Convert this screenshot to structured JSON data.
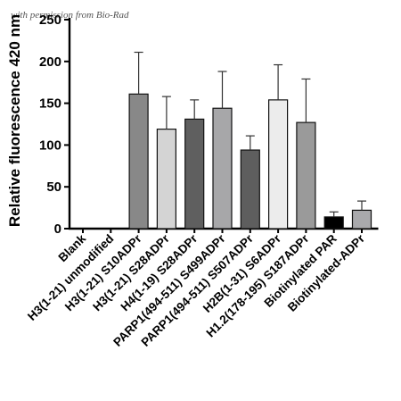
{
  "watermark": "with permission from Bio-Rad",
  "chart_data": {
    "type": "bar",
    "ylabel": "Relative fluorescence 420 nm",
    "ylim": [
      0,
      250
    ],
    "yticks": [
      0,
      50,
      100,
      150,
      200,
      250
    ],
    "grid": false,
    "categories": [
      "Blank",
      "H3(1-21) unmodified",
      "H3(1-21) S10ADPr",
      "H3(1-21) S28ADPr",
      "H4(1-19) S28ADPr",
      "PARP1(494-511) S499ADPr",
      "PARP1(494-511) S507ADPr",
      "H2B(1-31) S6ADPr",
      "H1.2(178-195) S187ADPr",
      "Biotinylated PAR",
      "Biotinylated-ADPr"
    ],
    "values": [
      0,
      0,
      161,
      119,
      131,
      144,
      94,
      154,
      127,
      14,
      22
    ],
    "errors": [
      0,
      0,
      50,
      39,
      23,
      44,
      17,
      42,
      52,
      6,
      11
    ],
    "colors": [
      "#ffffff",
      "#ffffff",
      "#888888",
      "#d4d4d4",
      "#5f5f5f",
      "#a7a7a9",
      "#5e5e5e",
      "#ececec",
      "#9a9a9a",
      "#000000",
      "#a9a9ac"
    ]
  }
}
